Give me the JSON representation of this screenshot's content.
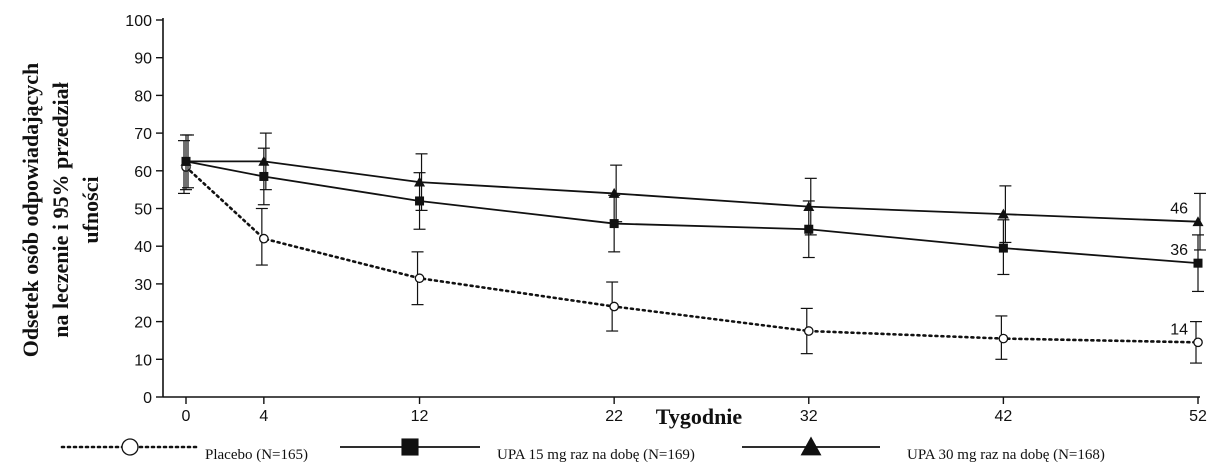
{
  "chart_data": {
    "type": "line",
    "title": "",
    "xlabel": "Tygodnie",
    "ylabel_lines": [
      "Odsetek osób odpowiadających",
      "na leczenie i 95% przedział",
      "ufności"
    ],
    "x": [
      0,
      4,
      12,
      22,
      32,
      42,
      52
    ],
    "xlim": [
      0,
      52
    ],
    "ylim": [
      0,
      100
    ],
    "yticks": [
      0,
      10,
      20,
      30,
      40,
      50,
      60,
      70,
      80,
      90,
      100
    ],
    "grid": false,
    "legend_position": "bottom",
    "series": [
      {
        "name": "Placebo (N=165)",
        "style": "dotted",
        "marker": "open-circle",
        "color": "#111111",
        "values": [
          61,
          42,
          31.5,
          24,
          17.5,
          15.5,
          14.5
        ],
        "ci_low": [
          54,
          35,
          24.5,
          17.5,
          11.5,
          10,
          9
        ],
        "ci_high": [
          68,
          50,
          38.5,
          30.5,
          23.5,
          21.5,
          20
        ],
        "end_label": "14"
      },
      {
        "name": "UPA 15 mg raz na dobę (N=169)",
        "style": "solid",
        "marker": "filled-square",
        "color": "#111111",
        "values": [
          62.5,
          58.5,
          52,
          46,
          44.5,
          39.5,
          35.5
        ],
        "ci_low": [
          55,
          51,
          44.5,
          38.5,
          37,
          32.5,
          28
        ],
        "ci_high": [
          69.5,
          66,
          59.5,
          53.5,
          52,
          47,
          43
        ],
        "end_label": "36"
      },
      {
        "name": "UPA 30 mg raz na dobę (N=168)",
        "style": "solid",
        "marker": "filled-triangle",
        "color": "#111111",
        "values": [
          62.5,
          62.5,
          57,
          54,
          50.5,
          48.5,
          46.5
        ],
        "ci_low": [
          55.5,
          55,
          49.5,
          46.5,
          43,
          41,
          39
        ],
        "ci_high": [
          69.5,
          70,
          64.5,
          61.5,
          58,
          56,
          54
        ],
        "end_label": "46"
      }
    ]
  }
}
